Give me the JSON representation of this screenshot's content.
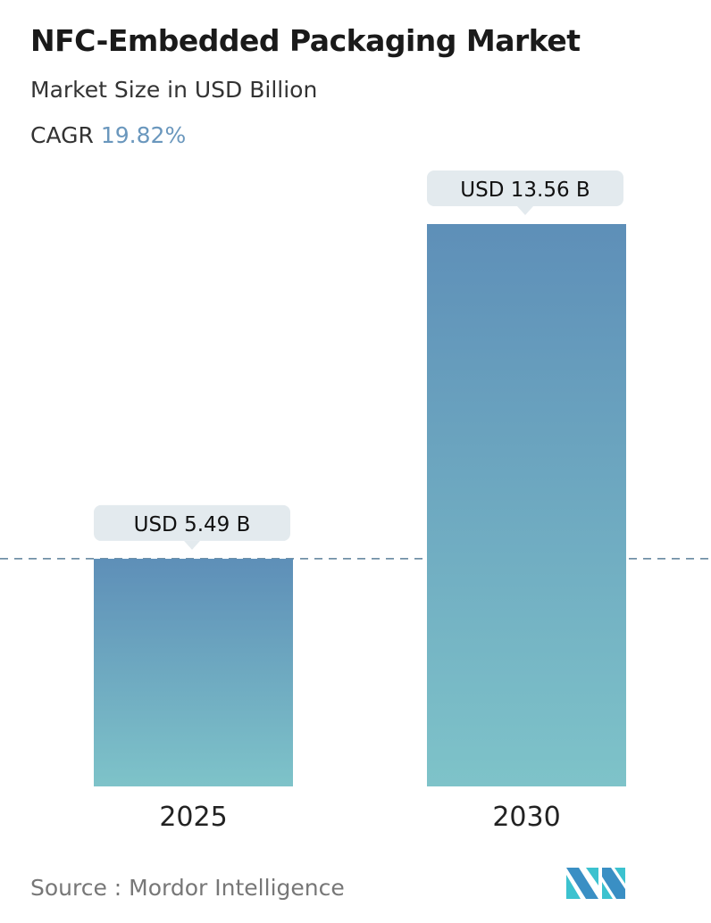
{
  "title": "NFC-Embedded Packaging Market",
  "subtitle": "Market Size in USD Billion",
  "cagr_label": "CAGR",
  "cagr_value": "19.82%",
  "source": "Source :  Mordor Intelligence",
  "logo_text": "MI",
  "colors": {
    "bar_top": "#5e8fb8",
    "bar_bottom": "#7ec3c9",
    "cagr": "#6a97bd",
    "label_bg": "#e3eaee",
    "reference_line": "#5a7f99"
  },
  "chart_data": {
    "type": "bar",
    "categories": [
      "2025",
      "2030"
    ],
    "values": [
      5.49,
      13.56
    ],
    "data_labels": [
      "USD 5.49 B",
      "USD 13.56 B"
    ],
    "title": "NFC-Embedded Packaging Market",
    "ylabel": "",
    "xlabel": "",
    "ylim": [
      0,
      13.56
    ],
    "grid": false,
    "reference_line": {
      "value": 5.49,
      "style": "dashed"
    }
  }
}
